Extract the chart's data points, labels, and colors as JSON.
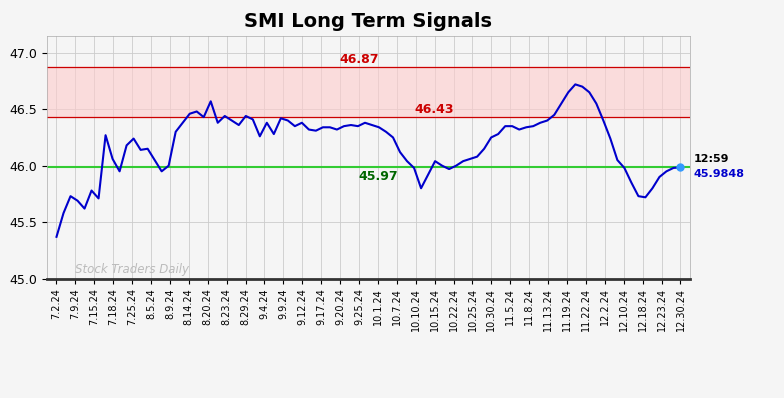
{
  "title": "SMI Long Term Signals",
  "title_fontsize": 14,
  "title_fontweight": "bold",
  "ylim": [
    45.0,
    47.15
  ],
  "yticks": [
    45.0,
    45.5,
    46.0,
    46.5,
    47.0
  ],
  "green_line": 45.9848,
  "red_line_upper": 46.87,
  "red_line_lower": 46.43,
  "label_46_87": "46.87",
  "label_46_43": "46.43",
  "label_45_97": "45.97",
  "label_time": "12:59",
  "label_price": "45.9848",
  "watermark": "Stock Traders Daily",
  "line_color": "#0000cc",
  "green_line_color": "#33cc33",
  "red_line_color": "#cc0000",
  "red_band_color": "#ffcccc",
  "watermark_color": "#bbbbbb",
  "background_color": "#f5f5f5",
  "xtick_labels": [
    "7.2.24",
    "7.9.24",
    "7.15.24",
    "7.18.24",
    "7.25.24",
    "8.5.24",
    "8.9.24",
    "8.14.24",
    "8.20.24",
    "8.23.24",
    "8.29.24",
    "9.4.24",
    "9.9.24",
    "9.12.24",
    "9.17.24",
    "9.20.24",
    "9.25.24",
    "10.1.24",
    "10.7.24",
    "10.10.24",
    "10.15.24",
    "10.22.24",
    "10.25.24",
    "10.30.24",
    "11.5.24",
    "11.8.24",
    "11.13.24",
    "11.19.24",
    "11.22.24",
    "12.2.24",
    "12.10.24",
    "12.18.24",
    "12.23.24",
    "12.30.24"
  ],
  "y_values": [
    45.37,
    45.58,
    45.73,
    45.69,
    45.62,
    45.78,
    45.71,
    46.27,
    46.06,
    45.95,
    46.18,
    46.24,
    46.14,
    46.15,
    46.05,
    45.95,
    46.0,
    46.3,
    46.38,
    46.46,
    46.48,
    46.43,
    46.57,
    46.38,
    46.44,
    46.4,
    46.36,
    46.44,
    46.41,
    46.26,
    46.38,
    46.28,
    46.42,
    46.4,
    46.35,
    46.38,
    46.32,
    46.31,
    46.34,
    46.34,
    46.32,
    46.35,
    46.36,
    46.35,
    46.38,
    46.36,
    46.34,
    46.3,
    46.25,
    46.12,
    46.04,
    45.98,
    45.8,
    45.92,
    46.04,
    46.0,
    45.97,
    46.0,
    46.04,
    46.06,
    46.08,
    46.15,
    46.25,
    46.28,
    46.35,
    46.35,
    46.32,
    46.34,
    46.35,
    46.38,
    46.4,
    46.45,
    46.55,
    46.65,
    46.72,
    46.7,
    46.65,
    46.55,
    46.4,
    46.24,
    46.05,
    45.98,
    45.85,
    45.73,
    45.72,
    45.8,
    45.9,
    45.95,
    45.98,
    45.9848
  ]
}
